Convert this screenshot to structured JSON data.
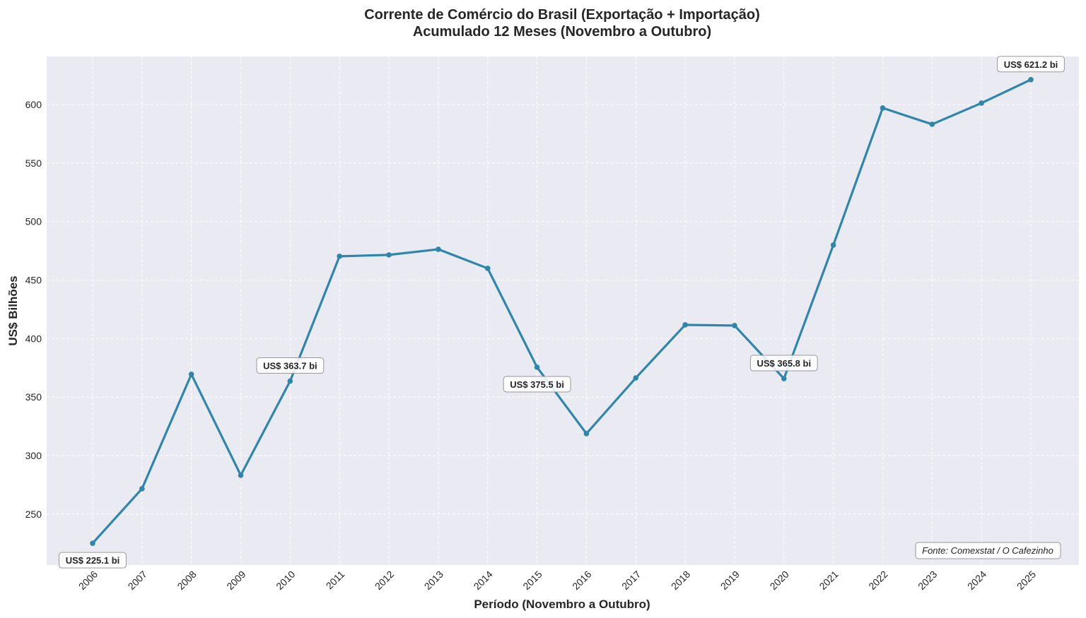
{
  "chart_data": {
    "type": "line",
    "title": "Corrente de Comércio do Brasil (Exportação + Importação)",
    "subtitle": "Acumulado 12 Meses (Novembro a Outubro)",
    "xlabel": "Período (Novembro a Outubro)",
    "ylabel": "US$ Bilhões",
    "x": [
      "2006",
      "2007",
      "2008",
      "2009",
      "2010",
      "2011",
      "2012",
      "2013",
      "2014",
      "2015",
      "2016",
      "2017",
      "2018",
      "2019",
      "2020",
      "2021",
      "2022",
      "2023",
      "2024",
      "2025"
    ],
    "values": [
      225.1,
      271.7,
      369.5,
      283.2,
      363.7,
      470.3,
      471.5,
      476.3,
      460.0,
      375.5,
      318.8,
      366.4,
      411.7,
      411.1,
      365.8,
      479.9,
      597.0,
      583.1,
      601.2,
      621.2
    ],
    "yticks": [
      250,
      300,
      350,
      400,
      450,
      500,
      550,
      600
    ],
    "ylim": [
      206.5,
      641
    ],
    "grid": true,
    "line_color": "#2e86ab",
    "background_color": "#eaeaf2",
    "annotations": [
      {
        "year": "2006",
        "text": "US$ 225.1 bi",
        "pos": "below"
      },
      {
        "year": "2010",
        "text": "US$ 363.7 bi",
        "pos": "above"
      },
      {
        "year": "2015",
        "text": "US$ 375.5 bi",
        "pos": "below"
      },
      {
        "year": "2020",
        "text": "US$ 365.8 bi",
        "pos": "above"
      },
      {
        "year": "2025",
        "text": "US$ 621.2 bi",
        "pos": "above"
      }
    ],
    "source": "Fonte: Comexstat / O Cafezinho"
  }
}
